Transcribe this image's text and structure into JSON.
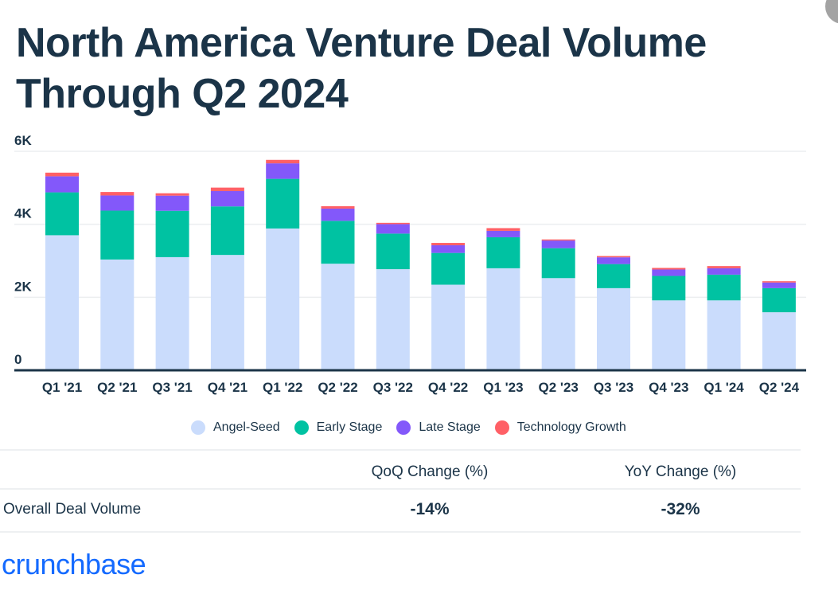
{
  "title": "North America Venture Deal Volume Through Q2 2024",
  "chart_data": {
    "type": "bar",
    "stacked": true,
    "title": "North America Venture Deal Volume Through Q2 2024",
    "xlabel": "",
    "ylabel": "",
    "ylim": [
      0,
      6000
    ],
    "yticks": [
      0,
      2000,
      4000,
      6000
    ],
    "ytick_labels": [
      "0",
      "2K",
      "4K",
      "6K"
    ],
    "grid": true,
    "legend_position": "bottom",
    "categories": [
      "Q1 '21",
      "Q2 '21",
      "Q3 '21",
      "Q4 '21",
      "Q1 '22",
      "Q2 '22",
      "Q3 '22",
      "Q4 '22",
      "Q1 '23",
      "Q2 '23",
      "Q3 '23",
      "Q4 '23",
      "Q1 '24",
      "Q2 '24"
    ],
    "series": [
      {
        "name": "Angel-Seed",
        "color": "#cadcfc",
        "values": [
          3700,
          3035,
          3100,
          3160,
          3885,
          2920,
          2770,
          2345,
          2795,
          2525,
          2250,
          1915,
          1915,
          1590
        ]
      },
      {
        "name": "Early Stage",
        "color": "#00c2a2",
        "values": [
          1175,
          1340,
          1270,
          1330,
          1360,
          1175,
          975,
          870,
          850,
          820,
          660,
          670,
          705,
          660
        ]
      },
      {
        "name": "Late Stage",
        "color": "#8358fa",
        "values": [
          440,
          415,
          415,
          420,
          425,
          335,
          260,
          210,
          175,
          210,
          185,
          175,
          175,
          155
        ]
      },
      {
        "name": "Technology Growth",
        "color": "#ff6066",
        "values": [
          100,
          95,
          65,
          95,
          95,
          65,
          35,
          65,
          75,
          30,
          35,
          45,
          60,
          35
        ]
      }
    ]
  },
  "table": {
    "columns": [
      "",
      "QoQ Change (%)",
      "YoY Change (%)"
    ],
    "rows": [
      {
        "label": "Overall Deal Volume",
        "qoq": "-14%",
        "yoy": "-32%"
      }
    ]
  },
  "brand": {
    "logo_text": "crunchbase",
    "color": "#146aff"
  },
  "colors": {
    "text": "#1b3448",
    "axis": "#1b3448",
    "grid": "#eceef0"
  }
}
